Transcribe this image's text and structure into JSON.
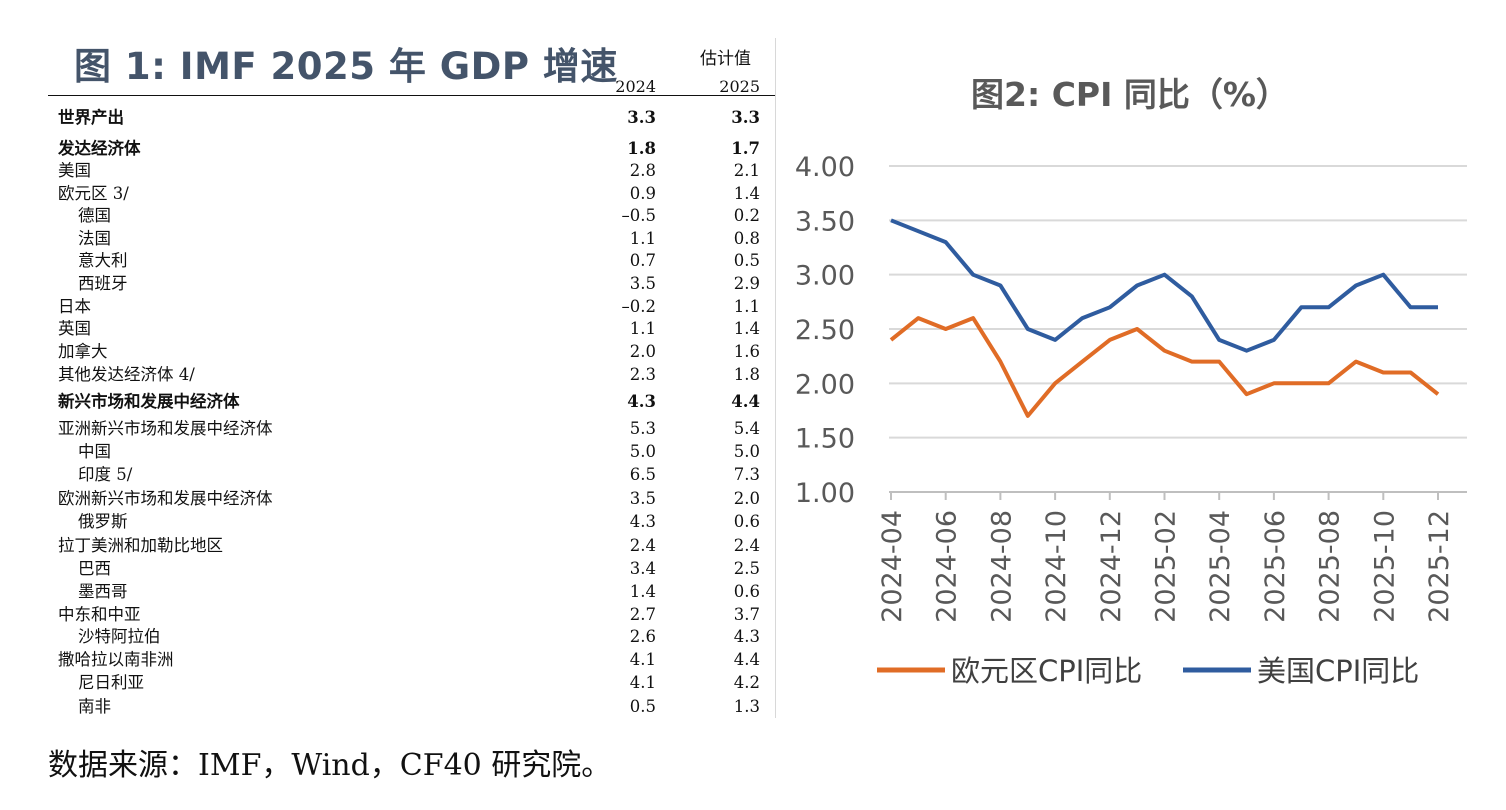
{
  "table": {
    "title": "图 1: IMF 2025 年 GDP 增速",
    "estimate_label": "估计值",
    "year1": "2024",
    "year2": "2025",
    "rows": [
      {
        "label": "世界产出",
        "v2024": "3.3",
        "v2025": "3.3"
      },
      {
        "label": "发达经济体",
        "v2024": "1.8",
        "v2025": "1.7"
      },
      {
        "label": "美国",
        "v2024": "2.8",
        "v2025": "2.1"
      },
      {
        "label": "欧元区 3/",
        "v2024": "0.9",
        "v2025": "1.4"
      },
      {
        "label": "德国",
        "v2024": "–0.5",
        "v2025": "0.2"
      },
      {
        "label": "法国",
        "v2024": "1.1",
        "v2025": "0.8"
      },
      {
        "label": "意大利",
        "v2024": "0.7",
        "v2025": "0.5"
      },
      {
        "label": "西班牙",
        "v2024": "3.5",
        "v2025": "2.9"
      },
      {
        "label": "日本",
        "v2024": "–0.2",
        "v2025": "1.1"
      },
      {
        "label": "英国",
        "v2024": "1.1",
        "v2025": "1.4"
      },
      {
        "label": "加拿大",
        "v2024": "2.0",
        "v2025": "1.6"
      },
      {
        "label": "其他发达经济体 4/",
        "v2024": "2.3",
        "v2025": "1.8"
      },
      {
        "label": "新兴市场和发展中经济体",
        "v2024": "4.3",
        "v2025": "4.4"
      },
      {
        "label": "亚洲新兴市场和发展中经济体",
        "v2024": "5.3",
        "v2025": "5.4"
      },
      {
        "label": "中国",
        "v2024": "5.0",
        "v2025": "5.0"
      },
      {
        "label": "印度 5/",
        "v2024": "6.5",
        "v2025": "7.3"
      },
      {
        "label": "欧洲新兴市场和发展中经济体",
        "v2024": "3.5",
        "v2025": "2.0"
      },
      {
        "label": "俄罗斯",
        "v2024": "4.3",
        "v2025": "0.6"
      },
      {
        "label": "拉丁美洲和加勒比地区",
        "v2024": "2.4",
        "v2025": "2.4"
      },
      {
        "label": "巴西",
        "v2024": "3.4",
        "v2025": "2.5"
      },
      {
        "label": "墨西哥",
        "v2024": "1.4",
        "v2025": "0.6"
      },
      {
        "label": "中东和中亚",
        "v2024": "2.7",
        "v2025": "3.7"
      },
      {
        "label": "沙特阿拉伯",
        "v2024": "2.6",
        "v2025": "4.3"
      },
      {
        "label": "撒哈拉以南非洲",
        "v2024": "4.1",
        "v2025": "4.4"
      },
      {
        "label": "尼日利亚",
        "v2024": "4.1",
        "v2025": "4.2"
      },
      {
        "label": "南非",
        "v2024": "0.5",
        "v2025": "1.3"
      }
    ]
  },
  "source": "数据来源：IMF，Wind，CF40 研究院。",
  "chart_data": {
    "type": "line",
    "title": "图2: CPI 同比（%）",
    "x": [
      "2024-04",
      "2024-05",
      "2024-06",
      "2024-07",
      "2024-08",
      "2024-09",
      "2024-10",
      "2024-11",
      "2024-12",
      "2025-01",
      "2025-02",
      "2025-03",
      "2025-04",
      "2025-05",
      "2025-06",
      "2025-07",
      "2025-08",
      "2025-09",
      "2025-10",
      "2025-11",
      "2025-12"
    ],
    "xtick_labels": [
      "2024-04",
      "2024-06",
      "2024-08",
      "2024-10",
      "2024-12",
      "2025-02",
      "2025-04",
      "2025-06",
      "2025-08",
      "2025-10",
      "2025-12"
    ],
    "yticks": [
      "4.00",
      "3.50",
      "3.00",
      "2.50",
      "2.00",
      "1.50",
      "1.00"
    ],
    "ylim": [
      1.0,
      4.0
    ],
    "grid": true,
    "legend_position": "bottom",
    "series": [
      {
        "name": "欧元区CPI同比",
        "color": "#e06c26",
        "values": [
          2.4,
          2.6,
          2.5,
          2.6,
          2.2,
          1.7,
          2.0,
          2.2,
          2.4,
          2.5,
          2.3,
          2.2,
          2.2,
          1.9,
          2.0,
          2.0,
          2.0,
          2.2,
          2.1,
          2.1,
          1.9
        ]
      },
      {
        "name": "美国CPI同比",
        "color": "#2f5c9f",
        "values": [
          3.5,
          3.4,
          3.3,
          3.0,
          2.9,
          2.5,
          2.4,
          2.6,
          2.7,
          2.9,
          3.0,
          2.8,
          2.4,
          2.3,
          2.4,
          2.7,
          2.7,
          2.9,
          3.0,
          2.7,
          2.7
        ]
      }
    ]
  }
}
